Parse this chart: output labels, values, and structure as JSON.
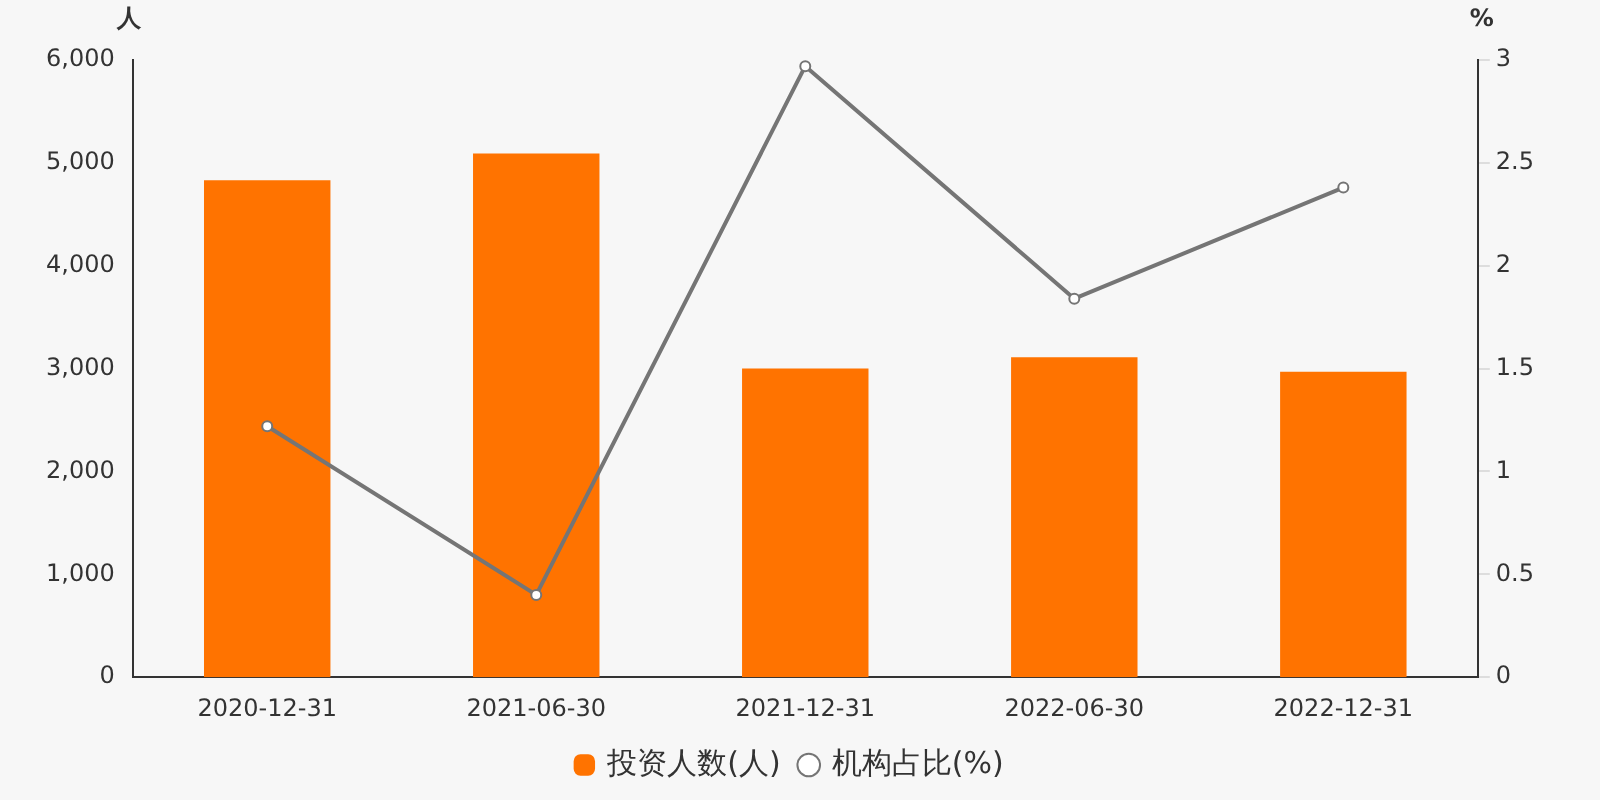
{
  "chart_data": {
    "type": "bar",
    "ylabel": "人",
    "y2label": "%",
    "categories": [
      "2020-12-31",
      "2021-06-30",
      "2021-12-31",
      "2022-06-30",
      "2022-12-31"
    ],
    "series": [
      {
        "name": "投资人数(人)",
        "color": "#ff7300",
        "values": [
          4830,
          5090,
          3000,
          3110,
          2970
        ]
      },
      {
        "name": "机构占比(%)",
        "type": "line",
        "axis": "y2",
        "color": "#757575",
        "marker": "circle",
        "values": [
          1.22,
          0.4,
          2.97,
          1.84,
          2.38
        ]
      }
    ],
    "ylim": [
      0,
      6000
    ],
    "yticks": [
      {
        "value": 0,
        "label": "0"
      },
      {
        "value": 1000,
        "label": "1,000"
      },
      {
        "value": 2000,
        "label": "2,000"
      },
      {
        "value": 3000,
        "label": "3,000"
      },
      {
        "value": 4000,
        "label": "4,000"
      },
      {
        "value": 5000,
        "label": "5,000"
      },
      {
        "value": 6000,
        "label": "6,000"
      }
    ],
    "y2lim": [
      0,
      3
    ],
    "y2ticks": [
      0,
      0.5,
      1,
      1.5,
      2,
      2.5,
      3
    ],
    "grid": false,
    "legend": "bottom"
  }
}
